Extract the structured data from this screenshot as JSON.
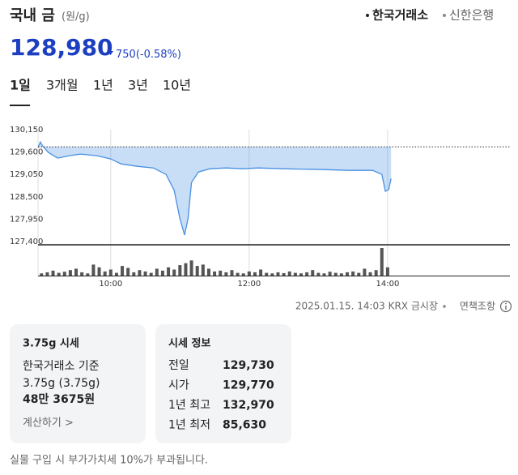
{
  "header": {
    "title": "국내 금",
    "unit": "(원/g)",
    "sources": [
      "한국거래소",
      "신한은행"
    ]
  },
  "price": {
    "value": "128,980",
    "change": "750",
    "change_pct": "(-0.58%)"
  },
  "tabs": [
    "1일",
    "3개월",
    "1년",
    "3년",
    "10년"
  ],
  "chart_data": {
    "type": "line",
    "xlim": [
      537,
      946
    ],
    "ylim": [
      127400,
      130150
    ],
    "yticks": [
      {
        "value": 130150,
        "label": "130,150"
      },
      {
        "value": 129600,
        "label": "129,600"
      },
      {
        "value": 129050,
        "label": "129,050"
      },
      {
        "value": 128500,
        "label": "128,500"
      },
      {
        "value": 127950,
        "label": "127,950"
      },
      {
        "value": 127400,
        "label": "127,400"
      }
    ],
    "xticks": [
      {
        "value": 600,
        "label": "10:00"
      },
      {
        "value": 720,
        "label": "12:00"
      },
      {
        "value": 840,
        "label": "14:00"
      }
    ],
    "reference_line": 129730,
    "series": [
      {
        "color": "#4a90e2",
        "x": [
          537,
          539,
          541,
          546,
          554,
          564,
          574,
          588,
          600,
          609,
          623,
          637,
          648,
          655,
          660,
          664,
          667,
          670,
          676,
          686,
          700,
          714,
          728,
          749,
          785,
          806,
          827,
          835,
          838,
          841,
          843
        ],
        "values": [
          129712,
          129850,
          129750,
          129590,
          129450,
          129510,
          129550,
          129510,
          129430,
          129310,
          129250,
          129210,
          129050,
          128655,
          127960,
          127560,
          127960,
          128850,
          129110,
          129190,
          129210,
          129190,
          129210,
          129190,
          129170,
          129150,
          129150,
          129050,
          128635,
          128680,
          128950
        ]
      }
    ],
    "volume": {
      "color": "#555555",
      "ylim": [
        0,
        100
      ],
      "x": [
        540,
        545,
        550,
        555,
        560,
        565,
        570,
        575,
        580,
        585,
        590,
        595,
        600,
        605,
        610,
        615,
        620,
        625,
        630,
        635,
        640,
        645,
        650,
        655,
        660,
        665,
        670,
        675,
        680,
        685,
        690,
        695,
        700,
        705,
        710,
        715,
        720,
        725,
        730,
        735,
        740,
        745,
        750,
        755,
        760,
        765,
        770,
        775,
        780,
        785,
        790,
        795,
        800,
        805,
        810,
        815,
        820,
        825,
        830,
        835,
        840
      ],
      "values": [
        8,
        12,
        18,
        10,
        14,
        20,
        25,
        12,
        8,
        40,
        30,
        15,
        22,
        10,
        35,
        28,
        12,
        20,
        15,
        10,
        25,
        18,
        30,
        22,
        38,
        45,
        55,
        35,
        40,
        25,
        15,
        18,
        12,
        20,
        10,
        8,
        15,
        12,
        22,
        10,
        8,
        12,
        9,
        15,
        10,
        8,
        12,
        20,
        10,
        8,
        14,
        10,
        8,
        12,
        15,
        10,
        25,
        12,
        20,
        100,
        30
      ]
    }
  },
  "meta": {
    "timestamp": "2025.01.15. 14:03 KRX 금시장",
    "disclaimer": "면책조항"
  },
  "card1": {
    "title": "3.75g 시세",
    "basis": "한국거래소 기준",
    "weight": "3.75g (3.75g)",
    "price": "48만 3675원",
    "link": "계산하기 >"
  },
  "card2": {
    "title": "시세 정보",
    "rows": [
      {
        "label": "전일",
        "value": "129,730"
      },
      {
        "label": "시가",
        "value": "129,770"
      },
      {
        "label": "1년 최고",
        "value": "132,970"
      },
      {
        "label": "1년 최저",
        "value": "85,630"
      }
    ]
  },
  "footnote": "실물 구입 시 부가가치세 10%가 부과됩니다."
}
